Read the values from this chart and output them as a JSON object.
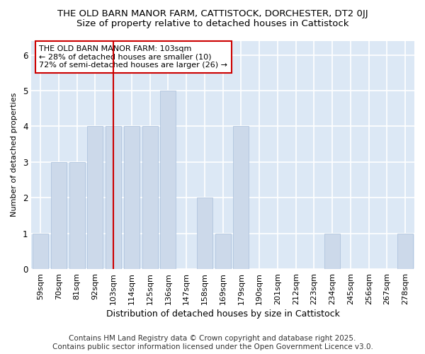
{
  "title_line1": "THE OLD BARN MANOR FARM, CATTISTOCK, DORCHESTER, DT2 0JJ",
  "title_line2": "Size of property relative to detached houses in Cattistock",
  "xlabel": "Distribution of detached houses by size in Cattistock",
  "ylabel": "Number of detached properties",
  "categories": [
    "59sqm",
    "70sqm",
    "81sqm",
    "92sqm",
    "103sqm",
    "114sqm",
    "125sqm",
    "136sqm",
    "147sqm",
    "158sqm",
    "169sqm",
    "179sqm",
    "190sqm",
    "201sqm",
    "212sqm",
    "223sqm",
    "234sqm",
    "245sqm",
    "256sqm",
    "267sqm",
    "278sqm"
  ],
  "values": [
    1,
    3,
    3,
    4,
    4,
    4,
    4,
    5,
    0,
    2,
    1,
    4,
    0,
    0,
    0,
    0,
    1,
    0,
    0,
    0,
    1
  ],
  "highlight_index": 4,
  "bar_color": "#ccd9ea",
  "bar_edge_color": "#b0c4de",
  "red_line_color": "#cc0000",
  "annotation_text": "THE OLD BARN MANOR FARM: 103sqm\n← 28% of detached houses are smaller (10)\n72% of semi-detached houses are larger (26) →",
  "annotation_box_color": "white",
  "annotation_box_edge": "#cc0000",
  "ylim": [
    0,
    6.4
  ],
  "yticks": [
    0,
    1,
    2,
    3,
    4,
    5,
    6
  ],
  "footer_line1": "Contains HM Land Registry data © Crown copyright and database right 2025.",
  "footer_line2": "Contains public sector information licensed under the Open Government Licence v3.0.",
  "bg_color": "#dce8f5",
  "grid_color": "white",
  "title_fontsize": 9.5,
  "subtitle_fontsize": 9.5,
  "tick_fontsize": 8,
  "label_fontsize": 9,
  "footer_fontsize": 7.5
}
